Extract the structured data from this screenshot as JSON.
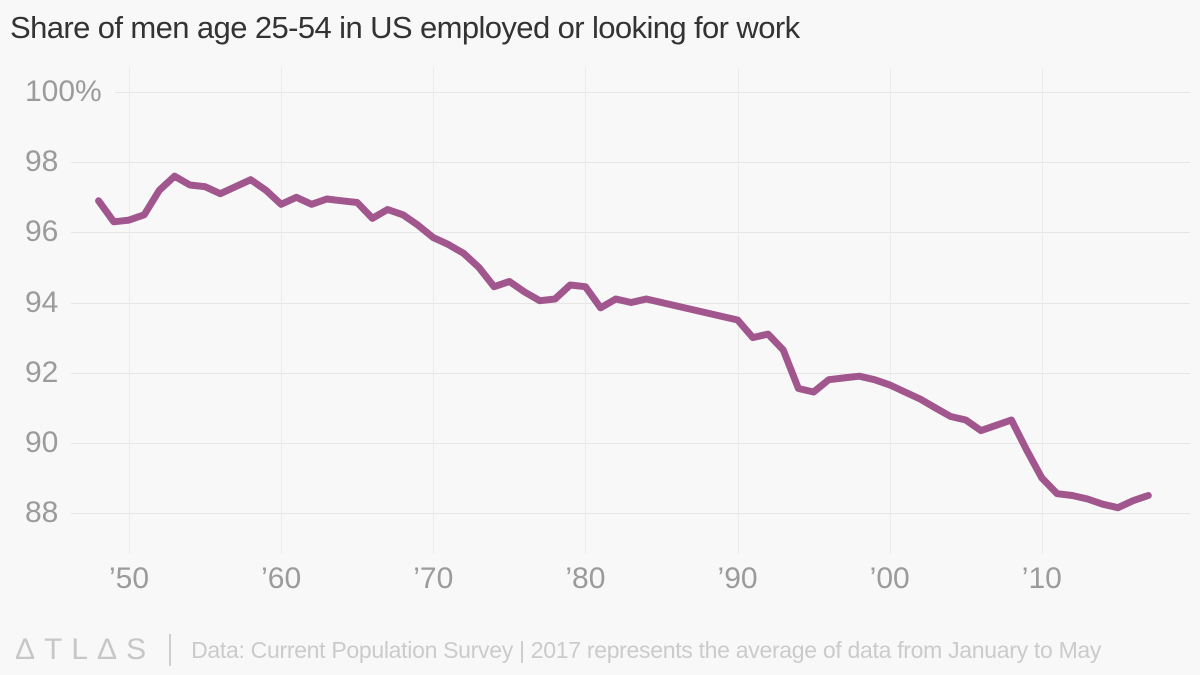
{
  "title": "Share of men age 25-54 in US employed or looking for work",
  "colors": {
    "background": "#f8f8f8",
    "line": "#a1568d",
    "grid": "#e8e8e8",
    "axis_text": "#9b9b9b",
    "title_text": "#333333",
    "footer_text": "#cbcbcb"
  },
  "footer": {
    "logo": "ΔTLΔS",
    "text": "Data: Current Population Survey | 2017 represents the average of data from January to May"
  },
  "chart_data": {
    "type": "line",
    "title": "Share of men age 25-54 in US employed or looking for work",
    "xlabel": "",
    "ylabel": "",
    "grid": true,
    "legend": "none",
    "ylim": [
      86.8,
      100.3
    ],
    "yticks": [
      {
        "label": "100%",
        "value": 100
      },
      {
        "label": "98",
        "value": 98
      },
      {
        "label": "96",
        "value": 96
      },
      {
        "label": "94",
        "value": 94
      },
      {
        "label": "92",
        "value": 92
      },
      {
        "label": "90",
        "value": 90
      },
      {
        "label": "88",
        "value": 88
      }
    ],
    "xticks": [
      {
        "label": "’50",
        "value": 1950
      },
      {
        "label": "’60",
        "value": 1960
      },
      {
        "label": "’70",
        "value": 1970
      },
      {
        "label": "’80",
        "value": 1980
      },
      {
        "label": "’90",
        "value": 1990
      },
      {
        "label": "’00",
        "value": 2000
      },
      {
        "label": "’10",
        "value": 2010
      }
    ],
    "x": [
      1948,
      1949,
      1950,
      1951,
      1952,
      1953,
      1954,
      1955,
      1956,
      1957,
      1958,
      1959,
      1960,
      1961,
      1962,
      1963,
      1964,
      1965,
      1966,
      1967,
      1968,
      1969,
      1970,
      1971,
      1972,
      1973,
      1974,
      1975,
      1976,
      1977,
      1978,
      1979,
      1980,
      1981,
      1982,
      1983,
      1984,
      1985,
      1986,
      1987,
      1988,
      1989,
      1990,
      1991,
      1992,
      1993,
      1994,
      1995,
      1996,
      1997,
      1998,
      1999,
      2000,
      2001,
      2002,
      2003,
      2004,
      2005,
      2006,
      2007,
      2008,
      2009,
      2010,
      2011,
      2012,
      2013,
      2014,
      2015,
      2016,
      2017
    ],
    "values": [
      96.9,
      96.3,
      96.35,
      96.5,
      97.2,
      97.6,
      97.35,
      97.3,
      97.1,
      97.3,
      97.5,
      97.2,
      96.8,
      97.0,
      96.8,
      96.95,
      96.9,
      96.85,
      96.4,
      96.65,
      96.5,
      96.2,
      95.85,
      95.65,
      95.4,
      95.0,
      94.45,
      94.6,
      94.3,
      94.05,
      94.1,
      94.5,
      94.45,
      93.85,
      94.1,
      94.0,
      94.1,
      94.0,
      93.9,
      93.8,
      93.7,
      93.6,
      93.5,
      93.0,
      93.1,
      92.65,
      91.55,
      91.45,
      91.8,
      91.85,
      91.9,
      91.8,
      91.65,
      91.45,
      91.25,
      91.0,
      90.75,
      90.65,
      90.35,
      90.5,
      90.65,
      89.8,
      89.0,
      88.55,
      88.5,
      88.4,
      88.25,
      88.15,
      88.35,
      88.5
    ]
  }
}
